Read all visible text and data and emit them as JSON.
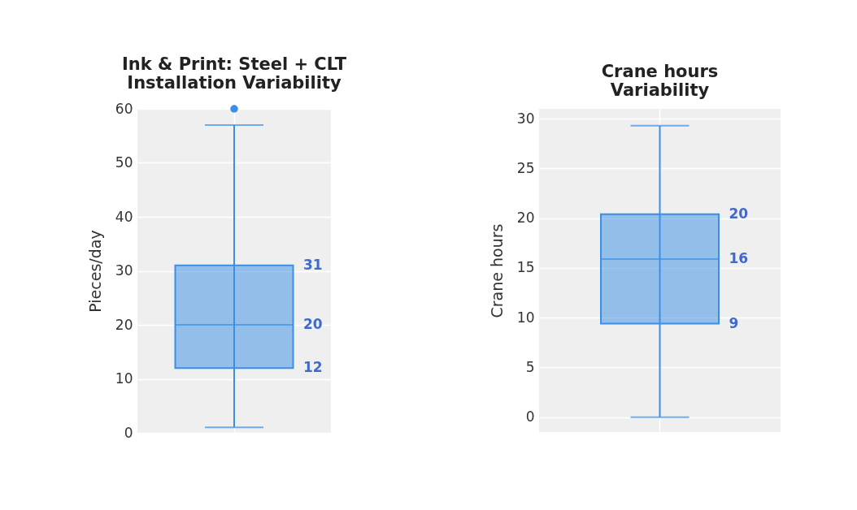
{
  "chart_data": [
    {
      "type": "box",
      "title": "Ink & Print: Steel + CLT\nInstallation Variability",
      "ylabel": "Pieces/day",
      "categories": [
        null
      ],
      "series": [
        {
          "color": "#3a8ee6",
          "boxes": [
            {
              "low": 1,
              "q1": 12,
              "median": 20,
              "q3": 31,
              "high": 57,
              "outliers": [
                60
              ]
            }
          ]
        }
      ],
      "ylim": [
        0,
        60
      ],
      "yticks": [
        0,
        10,
        20,
        30,
        40,
        50,
        60
      ],
      "grid": true,
      "annotations": [
        "31",
        "20",
        "12"
      ]
    },
    {
      "type": "box",
      "title": "Crane hours\nVariability",
      "ylabel": "Crane hours",
      "categories": [
        null
      ],
      "series": [
        {
          "color": "#3a8ee6",
          "boxes": [
            {
              "low": 0,
              "q1": 9.4,
              "median": 15.9,
              "q3": 20.4,
              "high": 29.3
            }
          ]
        }
      ],
      "ylim": [
        -1.5,
        31
      ],
      "yticks": [
        0,
        5,
        10,
        15,
        20,
        25,
        30
      ],
      "grid": true,
      "annotations": [
        "20",
        "16",
        "9"
      ]
    }
  ]
}
